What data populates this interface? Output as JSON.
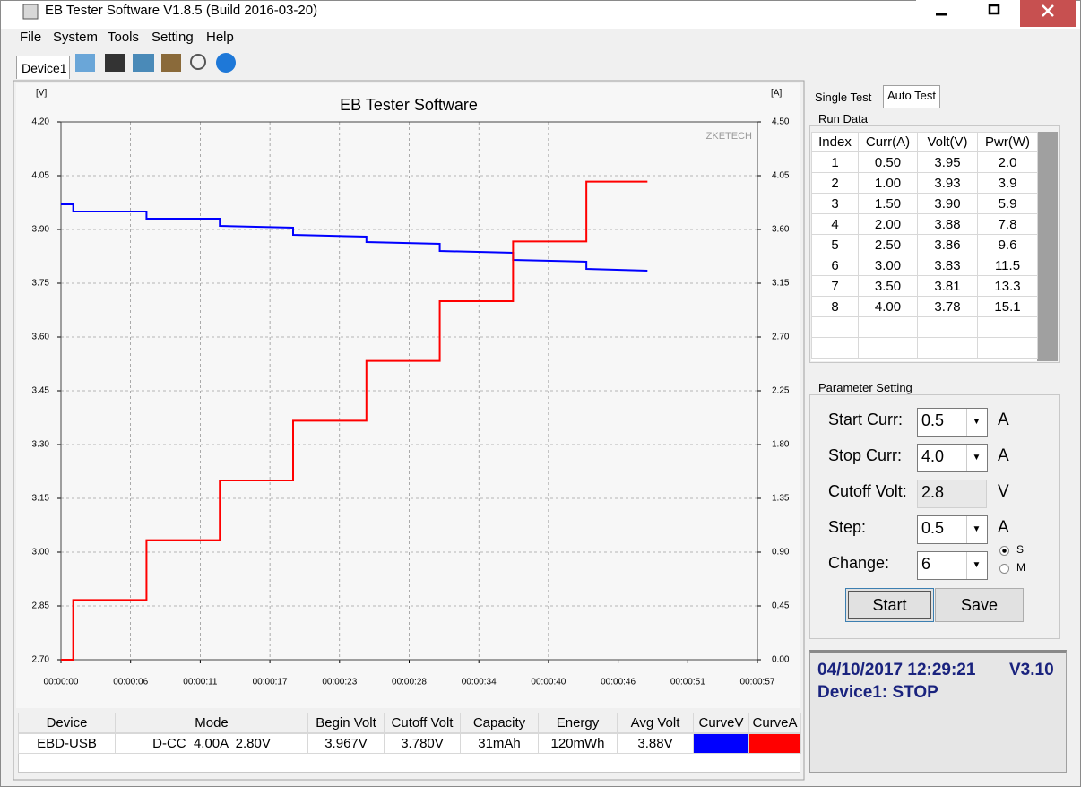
{
  "window": {
    "title": "EB Tester Software V1.8.5 (Build 2016-03-20)"
  },
  "menu": [
    "File",
    "System",
    "Tools",
    "Setting",
    "Help"
  ],
  "device_tab": "Device1",
  "side_tabs": [
    "Single Test",
    "Auto Test"
  ],
  "run_data": {
    "title": "Run Data",
    "columns": [
      "Index",
      "Curr(A)",
      "Volt(V)",
      "Pwr(W)"
    ],
    "rows": [
      [
        "1",
        "0.50",
        "3.95",
        "2.0"
      ],
      [
        "2",
        "1.00",
        "3.93",
        "3.9"
      ],
      [
        "3",
        "1.50",
        "3.90",
        "5.9"
      ],
      [
        "4",
        "2.00",
        "3.88",
        "7.8"
      ],
      [
        "5",
        "2.50",
        "3.86",
        "9.6"
      ],
      [
        "6",
        "3.00",
        "3.83",
        "11.5"
      ],
      [
        "7",
        "3.50",
        "3.81",
        "13.3"
      ],
      [
        "8",
        "4.00",
        "3.78",
        "15.1"
      ]
    ]
  },
  "parameters": {
    "title": "Parameter Setting",
    "fields": [
      {
        "label": "Start Curr:",
        "value": "0.5",
        "unit": "A"
      },
      {
        "label": "Stop Curr:",
        "value": "4.0",
        "unit": "A"
      },
      {
        "label": "Cutoff Volt:",
        "value": "2.8",
        "unit": "V"
      },
      {
        "label": "Step:",
        "value": "0.5",
        "unit": "A"
      },
      {
        "label": "Change:",
        "value": "6"
      }
    ],
    "modes": [
      "S",
      "M"
    ],
    "buttons": [
      "Start",
      "Save"
    ]
  },
  "status": {
    "datetime": "04/10/2017 12:29:21",
    "version": "V3.10",
    "state": "Device1: STOP"
  },
  "summary": {
    "columns": [
      "Device",
      "Mode",
      "Begin Volt",
      "Cutoff Volt",
      "Capacity",
      "Energy",
      "Avg Volt"
    ],
    "rows": [
      [
        "EBD-USB",
        "D-CC  4.00A  2.80V",
        "3.967V",
        "3.780V",
        "31mAh",
        "120mWh",
        "3.88V"
      ]
    ]
  },
  "chart_data": {
    "type": "line",
    "title": "EB Tester Software",
    "y_label": "[V]",
    "y2_label": "[A]",
    "annotation": "ZKETECH",
    "x": [
      0,
      1,
      1,
      7,
      7,
      13,
      13,
      19,
      19,
      25,
      25,
      31,
      31,
      37,
      37,
      43,
      43,
      48
    ],
    "xlim": [
      0,
      57
    ],
    "xticks": [
      {
        "value": 0,
        "label": "00:00:00"
      },
      {
        "value": 5.7,
        "label": "00:00:06"
      },
      {
        "value": 11.4,
        "label": "00:00:11"
      },
      {
        "value": 17.1,
        "label": "00:00:17"
      },
      {
        "value": 22.8,
        "label": "00:00:23"
      },
      {
        "value": 28.5,
        "label": "00:00:28"
      },
      {
        "value": 34.2,
        "label": "00:00:34"
      },
      {
        "value": 39.9,
        "label": "00:00:40"
      },
      {
        "value": 45.6,
        "label": "00:00:46"
      },
      {
        "value": 51.3,
        "label": "00:00:51"
      },
      {
        "value": 57,
        "label": "00:00:57"
      }
    ],
    "ylim": [
      2.7,
      4.2
    ],
    "yticks": [
      {
        "value": 2.7,
        "label": "2.70"
      },
      2.85,
      {
        "value": 3.0,
        "label": "3.00"
      },
      3.15,
      {
        "value": 3.3,
        "label": "3.30"
      },
      3.45,
      {
        "value": 3.6,
        "label": "3.60"
      },
      3.75,
      {
        "value": 3.9,
        "label": "3.90"
      },
      4.05,
      {
        "value": 4.2,
        "label": "4.20"
      }
    ],
    "y2lim": [
      0,
      4.5
    ],
    "y2ticks": [
      {
        "value": 0,
        "label": "0.00"
      },
      0.45,
      {
        "value": 0.9,
        "label": "0.90"
      },
      1.35,
      {
        "value": 1.8,
        "label": "1.80"
      },
      2.25,
      {
        "value": 2.7,
        "label": "2.70"
      },
      3.15,
      {
        "value": 3.6,
        "label": "3.60"
      },
      4.05,
      {
        "value": 4.5,
        "label": "4.50"
      }
    ],
    "grid": true,
    "series": [
      {
        "name": "CurveV",
        "color": "#0000ff",
        "values": [
          3.97,
          3.97,
          3.95,
          3.95,
          3.93,
          3.93,
          3.91,
          3.905,
          3.885,
          3.88,
          3.865,
          3.86,
          3.84,
          3.835,
          3.815,
          3.81,
          3.79,
          3.785
        ]
      },
      {
        "name": "CurveA",
        "color": "#ff0000",
        "axis": "y2",
        "values": [
          0,
          0,
          0.5,
          0.5,
          1.0,
          1.0,
          1.5,
          1.5,
          2.0,
          2.0,
          2.5,
          2.5,
          3.0,
          3.0,
          3.5,
          3.5,
          4.0,
          4.0
        ]
      }
    ]
  }
}
